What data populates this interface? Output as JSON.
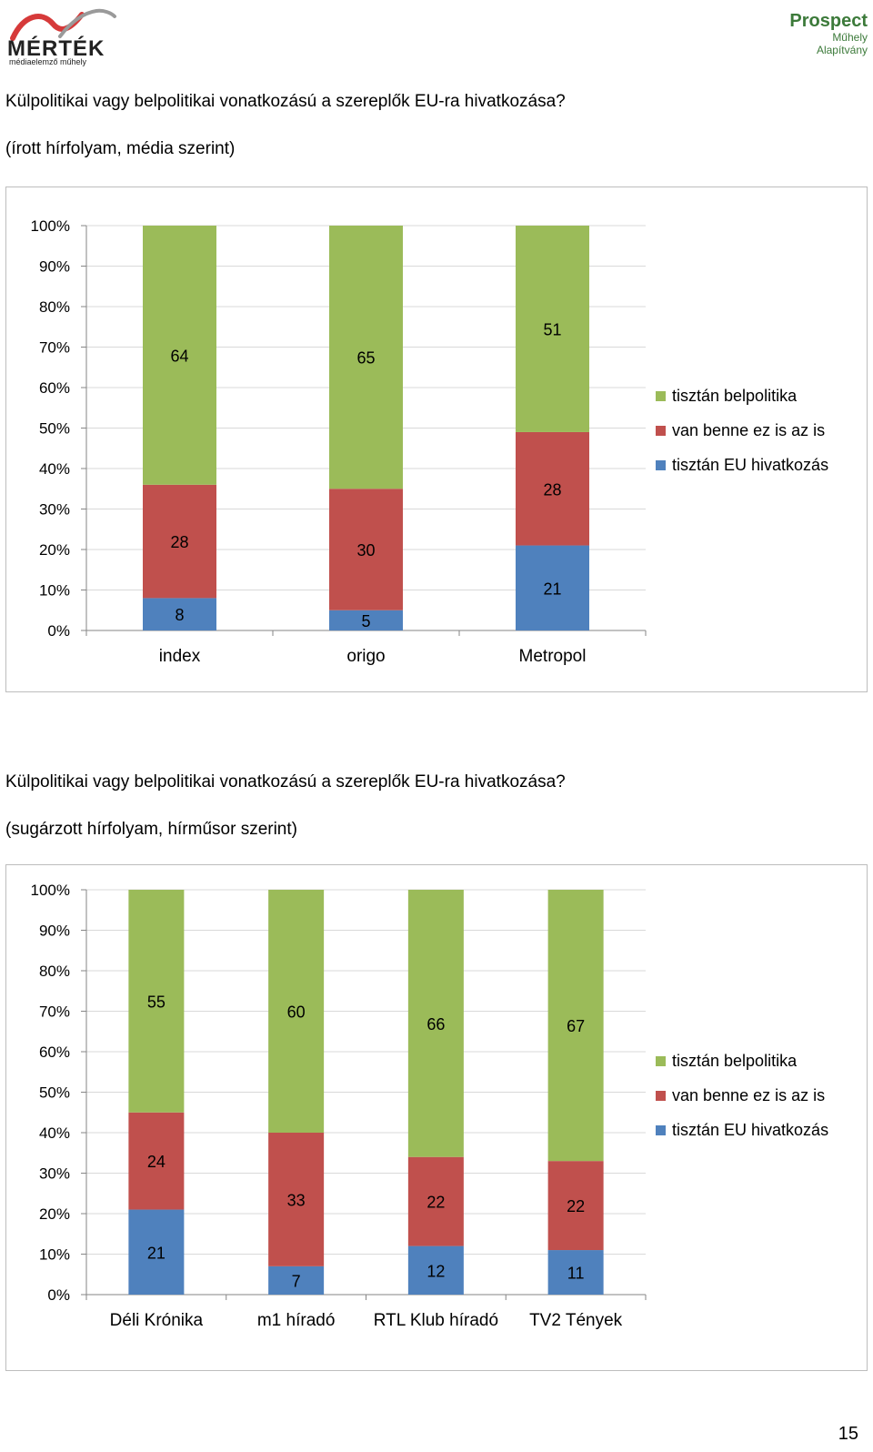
{
  "header": {
    "left_logo": {
      "brand": "MÉRTÉK",
      "tagline": "médiaelemző műhely"
    },
    "right_logo": {
      "line1": "Prospect",
      "line2": "Műhely",
      "line3": "Alapítvány"
    }
  },
  "colors": {
    "tisztan_belpolitika": "#9bbb59",
    "van_benne_ez_is_az_is": "#c0504d",
    "tisztan_eu_hivatkozas": "#4f81bd",
    "axis": "#868686",
    "grid": "#d9d9d9"
  },
  "sections": [
    {
      "title": "Külpolitikai vagy belpolitikai vonatkozású a szereplők EU-ra hivatkozása?",
      "subtitle": "(írott hírfolyam, média szerint)"
    },
    {
      "title": "Külpolitikai vagy belpolitikai vonatkozású a szereplők EU-ra hivatkozása?",
      "subtitle": "(sugárzott hírfolyam, hírműsor szerint)"
    }
  ],
  "chart_data": [
    {
      "type": "bar",
      "stacked": "percent",
      "categories": [
        "index",
        "origo",
        "Metropol"
      ],
      "series": [
        {
          "name": "tisztán EU hivatkozás",
          "values": [
            8,
            5,
            21
          ]
        },
        {
          "name": "van benne ez is az is",
          "values": [
            28,
            30,
            28
          ]
        },
        {
          "name": "tisztán belpolitika",
          "values": [
            64,
            65,
            51
          ]
        }
      ],
      "ylim": [
        0,
        100
      ],
      "yticks": [
        "0%",
        "10%",
        "20%",
        "30%",
        "40%",
        "50%",
        "60%",
        "70%",
        "80%",
        "90%",
        "100%"
      ],
      "legend": [
        "tisztán belpolitika",
        "van benne ez is az is",
        "tisztán EU hivatkozás"
      ],
      "legend_position": "right",
      "grid": true
    },
    {
      "type": "bar",
      "stacked": "percent",
      "categories": [
        "Déli Krónika",
        "m1 híradó",
        "RTL Klub híradó",
        "TV2 Tények"
      ],
      "series": [
        {
          "name": "tisztán EU hivatkozás",
          "values": [
            21,
            7,
            12,
            11
          ]
        },
        {
          "name": "van benne ez is az is",
          "values": [
            24,
            33,
            22,
            22
          ]
        },
        {
          "name": "tisztán belpolitika",
          "values": [
            55,
            60,
            66,
            67
          ]
        }
      ],
      "ylim": [
        0,
        100
      ],
      "yticks": [
        "0%",
        "10%",
        "20%",
        "30%",
        "40%",
        "50%",
        "60%",
        "70%",
        "80%",
        "90%",
        "100%"
      ],
      "legend": [
        "tisztán belpolitika",
        "van benne ez is az is",
        "tisztán EU hivatkozás"
      ],
      "legend_position": "right",
      "grid": true
    }
  ],
  "footer": {
    "page_number": "15"
  }
}
